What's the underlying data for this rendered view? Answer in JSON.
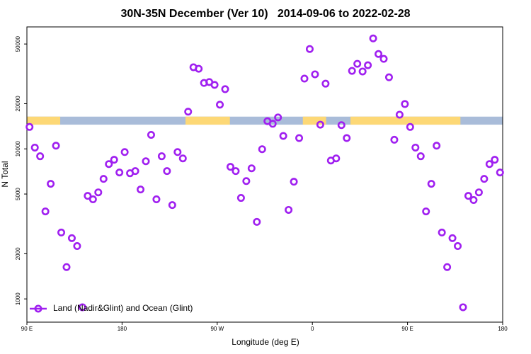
{
  "chart_data": {
    "type": "scatter",
    "title": "30N-35N December (Ver 10)   2014-09-06 to 2022-02-28",
    "x_label": "Longitude (deg E)",
    "y_label": "N Total",
    "log_y": true,
    "xlim": [
      90,
      540
    ],
    "ylim": [
      700,
      65000
    ],
    "xticks": [
      {
        "value": 90,
        "label": "90 E"
      },
      {
        "value": 180,
        "label": "180"
      },
      {
        "value": 270,
        "label": "90 W"
      },
      {
        "value": 360,
        "label": "0"
      },
      {
        "value": 450,
        "label": "90 E"
      },
      {
        "value": 540,
        "label": "180"
      }
    ],
    "yticks": [
      1000,
      2000,
      5000,
      10000,
      20000,
      50000
    ],
    "legend": "bottom-left",
    "band": [
      14500,
      16400
    ],
    "land_color": "#fdd876",
    "ocean_color": "#a9bcd9",
    "land_segments": [
      [
        90,
        121.5
      ],
      [
        240,
        282
      ],
      [
        351,
        373
      ],
      [
        396,
        500
      ]
    ],
    "x": [
      92.5,
      97.5,
      102.5,
      107.5,
      112.5,
      117.5,
      122.5,
      127.5,
      132.5,
      137.5,
      142.5,
      147.5,
      152.5,
      157.5,
      162.5,
      167.5,
      172.5,
      177.5,
      182.5,
      187.5,
      192.5,
      197.5,
      202.5,
      207.5,
      212.5,
      217.5,
      222.5,
      227.5,
      232.5,
      237.5,
      242.5,
      247.5,
      252.5,
      257.5,
      262.5,
      267.5,
      272.5,
      277.5,
      282.5,
      287.5,
      292.5,
      297.5,
      302.5,
      307.5,
      312.5,
      317.5,
      322.5,
      327.5,
      332.5,
      337.5,
      342.5,
      347.5,
      352.5,
      357.5,
      362.5,
      367.5,
      372.5,
      377.5,
      382.5,
      387.5,
      392.5,
      397.5,
      402.5,
      407.5,
      412.5,
      417.5,
      422.5,
      427.5,
      432.5,
      437.5,
      442.5,
      447.5,
      452.5,
      457.5,
      462.5,
      467.5,
      472.5,
      477.5,
      482.5,
      487.5,
      492.5,
      497.5,
      502.5,
      507.5,
      512.5,
      517.5,
      522.5,
      527.5,
      532.5,
      537.5
    ],
    "series": [
      {
        "name": "Land (Nadir&Glint) and Ocean (Glint)",
        "color": "#a020f0",
        "values": [
          14000,
          10200,
          8930,
          3830,
          5850,
          10500,
          2770,
          1630,
          2540,
          2250,
          880,
          4860,
          4610,
          5130,
          6310,
          7920,
          8460,
          6960,
          9520,
          6880,
          7110,
          5360,
          8270,
          12400,
          4610,
          8930,
          7110,
          4220,
          9520,
          8640,
          17700,
          35000,
          34200,
          27500,
          27900,
          26700,
          19700,
          25000,
          7590,
          7110,
          4710,
          6100,
          7420,
          3260,
          9950,
          15300,
          14700,
          16200,
          12200,
          3920,
          6040,
          11800,
          29400,
          46300,
          31400,
          14500,
          27200,
          8360,
          8640,
          14400,
          11800,
          33100,
          36900,
          32800,
          36100,
          54500,
          42900,
          39800,
          30000,
          11500,
          16900,
          19900,
          14000,
          10200,
          8930,
          3830,
          5850,
          10500,
          2770,
          1630,
          2540,
          2250,
          880,
          4860,
          4560,
          5130,
          6310,
          7920,
          8460,
          6960
        ]
      }
    ]
  }
}
